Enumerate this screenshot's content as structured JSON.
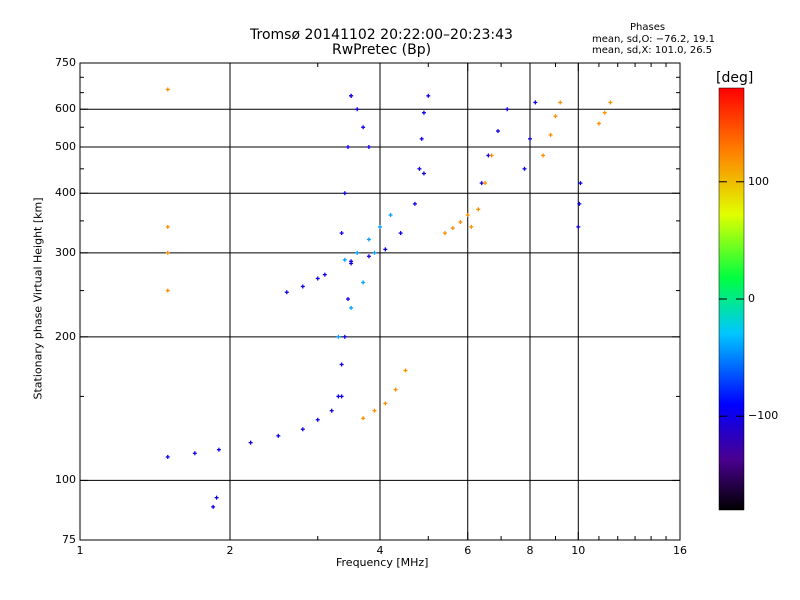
{
  "chart_data": {
    "type": "scatter",
    "title": "Tromsø 20141102 20:22:00–20:23:43",
    "subtitle": "RwPretec (Bp)",
    "xlabel": "Frequency [MHz]",
    "ylabel": "Stationary phase Virtual Height [km]",
    "x_scale": "log",
    "y_scale": "log",
    "xlim": [
      1,
      16
    ],
    "ylim": [
      75,
      750
    ],
    "x_ticks": [
      1,
      2,
      4,
      6,
      8,
      10,
      16
    ],
    "x_tick_labels": [
      "1",
      "2",
      "4",
      "6",
      "8",
      "10",
      "16"
    ],
    "y_ticks": [
      75,
      100,
      200,
      300,
      400,
      500,
      600,
      750
    ],
    "y_tick_labels": [
      "75",
      "100",
      "200",
      "300",
      "400",
      "500",
      "600",
      "750"
    ],
    "grid": true,
    "phase_info": {
      "title": "Phases",
      "line_o": "mean, sd,O: −76.2, 19.1",
      "line_x": "mean, sd,X: 101.0, 26.5"
    },
    "colorbar": {
      "label": "[deg]",
      "range": [
        -180,
        180
      ],
      "ticks": [
        100,
        0,
        -100
      ],
      "tick_labels": [
        "100",
        "0",
        "−100"
      ],
      "colormap": "rainbow"
    },
    "series": [
      {
        "component": "O",
        "color_value": -100,
        "segments": [
          {
            "x": [
              1.5,
              1.7,
              1.9,
              2.2,
              2.5,
              2.8,
              3.0,
              3.2,
              3.35
            ],
            "y": [
              112,
              114,
              116,
              120,
              124,
              128,
              134,
              140,
              150
            ]
          },
          {
            "x": [
              3.3,
              3.35,
              3.4,
              3.45,
              3.5
            ],
            "y": [
              150,
              175,
              200,
              240,
              285
            ]
          },
          {
            "x": [
              3.5,
              3.8,
              4.1,
              4.4,
              4.7,
              4.9
            ],
            "y": [
              288,
              295,
              305,
              330,
              380,
              440
            ]
          },
          {
            "x": [
              3.35,
              3.4,
              3.45,
              3.5
            ],
            "y": [
              330,
              400,
              500,
              640
            ]
          },
          {
            "x": [
              3.5,
              3.6,
              3.7,
              3.8
            ],
            "y": [
              640,
              600,
              550,
              500
            ]
          },
          {
            "x": [
              4.8,
              4.85,
              4.9,
              5.0
            ],
            "y": [
              450,
              520,
              590,
              640
            ]
          },
          {
            "x": [
              2.6,
              2.8,
              3.0,
              3.1
            ],
            "y": [
              248,
              255,
              265,
              270
            ]
          },
          {
            "x": [
              1.85,
              1.88
            ],
            "y": [
              88,
              92
            ]
          },
          {
            "x": [
              6.4,
              6.6,
              6.9,
              7.2
            ],
            "y": [
              420,
              480,
              540,
              600
            ]
          },
          {
            "x": [
              7.8,
              8.0,
              8.2
            ],
            "y": [
              450,
              520,
              620
            ]
          },
          {
            "x": [
              10.0,
              10.05,
              10.1
            ],
            "y": [
              340,
              380,
              420
            ]
          }
        ]
      },
      {
        "component": "X",
        "color_value": 120,
        "segments": [
          {
            "x": [
              3.7,
              3.9,
              4.1,
              4.3,
              4.5
            ],
            "y": [
              135,
              140,
              145,
              155,
              170
            ]
          },
          {
            "x": [
              5.4,
              5.6,
              5.8,
              6.0
            ],
            "y": [
              330,
              338,
              348,
              360
            ]
          },
          {
            "x": [
              6.1,
              6.3,
              6.5,
              6.7
            ],
            "y": [
              340,
              370,
              420,
              480
            ]
          },
          {
            "x": [
              8.5,
              8.8,
              9.0,
              9.2
            ],
            "y": [
              480,
              530,
              580,
              620
            ]
          },
          {
            "x": [
              11.0,
              11.3,
              11.6
            ],
            "y": [
              560,
              590,
              620
            ]
          },
          {
            "x": [
              1.5,
              1.5,
              1.5,
              1.5
            ],
            "y": [
              250,
              300,
              340,
              660
            ]
          }
        ]
      },
      {
        "component": "mixed",
        "color_value": -40,
        "segments": [
          {
            "x": [
              3.4,
              3.6,
              3.8,
              4.0,
              4.2
            ],
            "y": [
              290,
              300,
              320,
              340,
              360
            ]
          },
          {
            "x": [
              3.3,
              3.5,
              3.7,
              3.9
            ],
            "y": [
              200,
              230,
              260,
              300
            ]
          }
        ]
      }
    ]
  }
}
